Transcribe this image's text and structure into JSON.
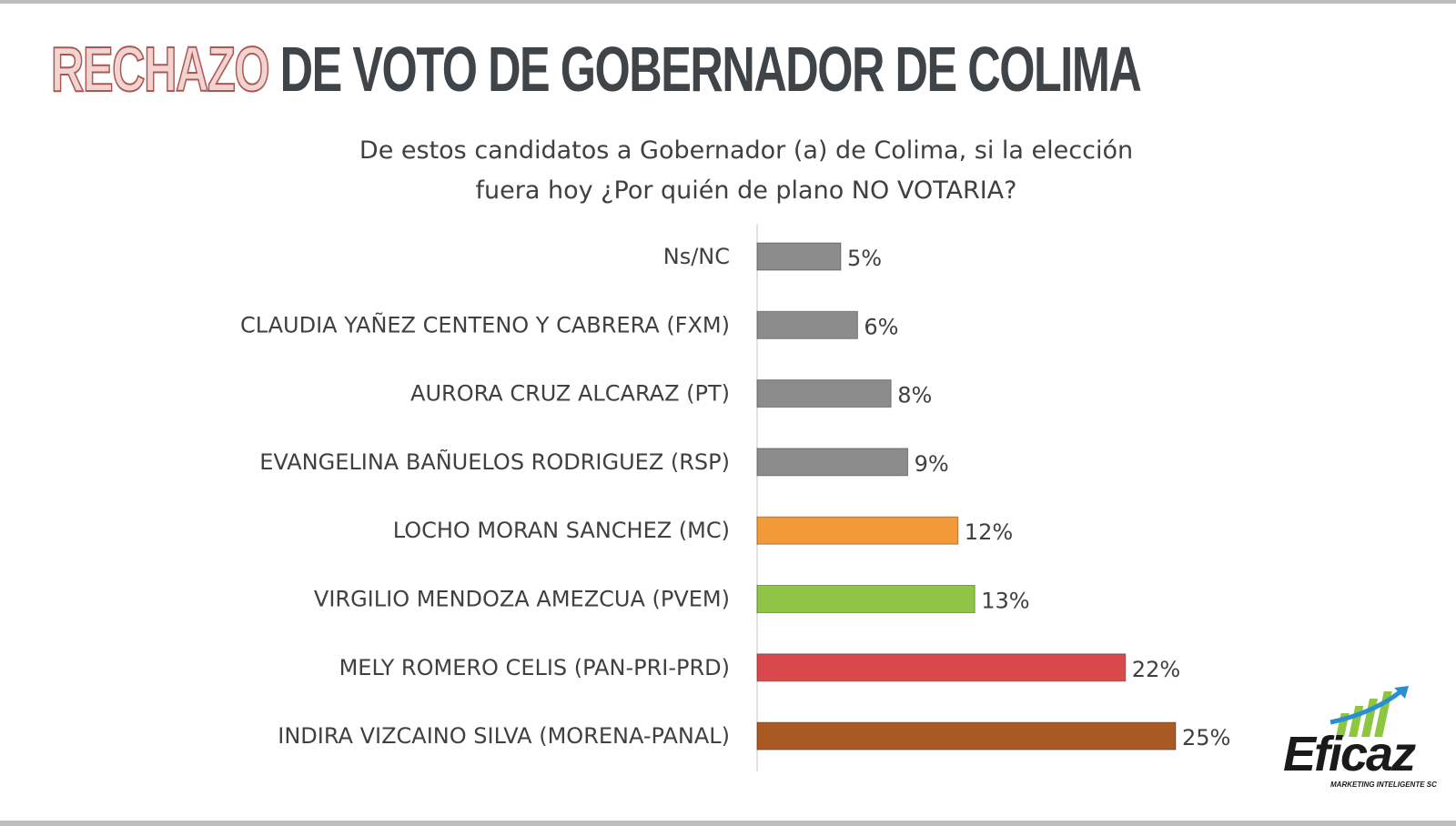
{
  "header": {
    "title_accent": "RECHAZO",
    "title_rest": "DE VOTO DE GOBERNADOR DE COLIMA",
    "subtitle_line1": "De estos candidatos a Gobernador (a) de Colima, si la elección",
    "subtitle_line2": "fuera hoy ¿Por quién de plano NO VOTARIA?"
  },
  "logo": {
    "name": "Eficaz",
    "tagline": "MARKETING INTELIGENTE SC",
    "icon": "growth-bars-arrow-icon",
    "colors": {
      "bars": "#8dc63f",
      "arrow": "#2a8fd0",
      "text": "#1a1a1a"
    }
  },
  "colors": {
    "title_accent_fill": "#f0d4d2",
    "title_accent_stroke": "#b05651",
    "title_text": "#3f4449"
  },
  "chart_data": {
    "type": "bar",
    "orientation": "horizontal",
    "categories": [
      "Ns/NC",
      "CLAUDIA YAÑEZ CENTENO Y CABRERA (FXM)",
      "AURORA CRUZ ALCARAZ (PT)",
      "EVANGELINA BAÑUELOS RODRIGUEZ (RSP)",
      "LOCHO MORAN SANCHEZ (MC)",
      "VIRGILIO MENDOZA AMEZCUA (PVEM)",
      "MELY ROMERO CELIS (PAN-PRI-PRD)",
      "INDIRA  VIZCAINO SILVA (MORENA-PANAL)"
    ],
    "values": [
      5,
      6,
      8,
      9,
      12,
      13,
      22,
      25
    ],
    "value_labels": [
      "5%",
      "6%",
      "8%",
      "9%",
      "12%",
      "13%",
      "22%",
      "25%"
    ],
    "bar_colors": [
      "#8c8c8c",
      "#8c8c8c",
      "#8c8c8c",
      "#8c8c8c",
      "#f39a38",
      "#8fc447",
      "#d9484a",
      "#a85a22"
    ],
    "unit": "%",
    "xlim": [
      0,
      25
    ],
    "grid": false,
    "legend": "none"
  }
}
